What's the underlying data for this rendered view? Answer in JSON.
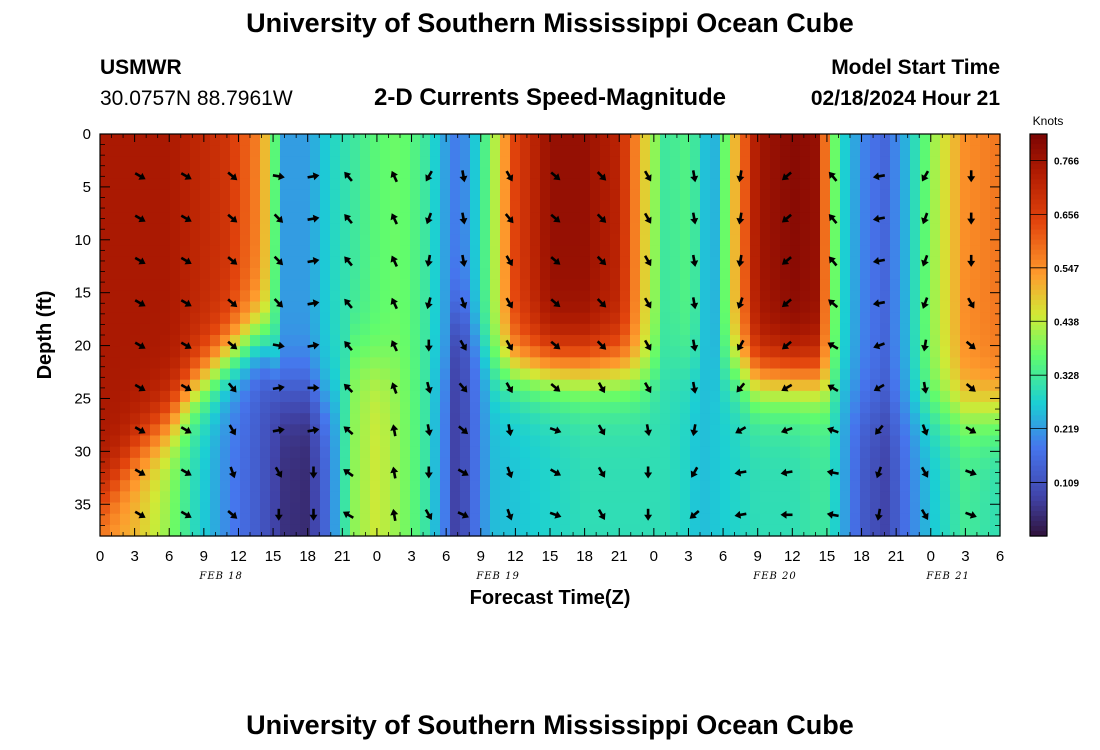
{
  "header": {
    "title": "University of Southern Mississippi Ocean Cube",
    "station_id": "USMWR",
    "coords": "30.0757N  88.7961W",
    "plot_title": "2-D Currents Speed-Magnitude",
    "model_start_label": "Model Start Time",
    "model_start_value": "02/18/2024 Hour 21"
  },
  "footer": {
    "title": "University of Southern Mississippi Ocean Cube"
  },
  "chart_data": {
    "type": "heatmap",
    "title": "2-D Currents Speed-Magnitude",
    "xlabel": "Forecast Time(Z)",
    "ylabel": "Depth (ft)",
    "x_start": "02/18/2024 00Z",
    "x_range_hours": [
      0,
      78
    ],
    "x_step_hours": 3,
    "x_tick_labels": [
      "0",
      "3",
      "6",
      "9",
      "12",
      "15",
      "18",
      "21",
      "0",
      "3",
      "6",
      "9",
      "12",
      "15",
      "18",
      "21",
      "0",
      "3",
      "6",
      "9",
      "12",
      "15",
      "18",
      "21",
      "0",
      "3",
      "6"
    ],
    "date_labels": [
      {
        "text": "FEB 18",
        "hour": 10.5
      },
      {
        "text": "FEB 19",
        "hour": 34.5
      },
      {
        "text": "FEB 20",
        "hour": 58.5
      },
      {
        "text": "FEB 21",
        "hour": 73.5
      }
    ],
    "y_range_ft": [
      0,
      38
    ],
    "y_inverted": true,
    "y_tick_labels": [
      "0",
      "5",
      "10",
      "15",
      "20",
      "25",
      "30",
      "35"
    ],
    "colorbar": {
      "unit": "Knots",
      "min": 0.0,
      "max": 0.82,
      "tick_labels": [
        "0.766",
        "0.656",
        "0.547",
        "0.438",
        "0.328",
        "0.219",
        "0.109"
      ]
    },
    "speed_profiles_knots": [
      {
        "hour": 0,
        "surface": 0.75,
        "deep": 0.55,
        "transition_ft": 35
      },
      {
        "hour": 3,
        "surface": 0.75,
        "deep": 0.5,
        "transition_ft": 30
      },
      {
        "hour": 6,
        "surface": 0.75,
        "deep": 0.4,
        "transition_ft": 27
      },
      {
        "hour": 8,
        "surface": 0.72,
        "deep": 0.3,
        "transition_ft": 24
      },
      {
        "hour": 11,
        "surface": 0.68,
        "deep": 0.2,
        "transition_ft": 21
      },
      {
        "hour": 14,
        "surface": 0.55,
        "deep": 0.12,
        "transition_ft": 19
      },
      {
        "hour": 16,
        "surface": 0.22,
        "deep": 0.05,
        "transition_ft": 24
      },
      {
        "hour": 18,
        "surface": 0.22,
        "deep": 0.04,
        "transition_ft": 24
      },
      {
        "hour": 20,
        "surface": 0.28,
        "deep": 0.18,
        "transition_ft": 26
      },
      {
        "hour": 22,
        "surface": 0.32,
        "deep": 0.4,
        "transition_ft": 20
      },
      {
        "hour": 24,
        "surface": 0.36,
        "deep": 0.45,
        "transition_ft": 22
      },
      {
        "hour": 26,
        "surface": 0.38,
        "deep": 0.4,
        "transition_ft": 22
      },
      {
        "hour": 28,
        "surface": 0.33,
        "deep": 0.33,
        "transition_ft": 22
      },
      {
        "hour": 30,
        "surface": 0.22,
        "deep": 0.18,
        "transition_ft": 22
      },
      {
        "hour": 31,
        "surface": 0.18,
        "deep": 0.05,
        "transition_ft": 16
      },
      {
        "hour": 32,
        "surface": 0.22,
        "deep": 0.14,
        "transition_ft": 18
      },
      {
        "hour": 34,
        "surface": 0.4,
        "deep": 0.25,
        "transition_ft": 22
      },
      {
        "hour": 36,
        "surface": 0.65,
        "deep": 0.26,
        "transition_ft": 22
      },
      {
        "hour": 39,
        "surface": 0.78,
        "deep": 0.28,
        "transition_ft": 22
      },
      {
        "hour": 42,
        "surface": 0.78,
        "deep": 0.3,
        "transition_ft": 22
      },
      {
        "hour": 45,
        "surface": 0.72,
        "deep": 0.3,
        "transition_ft": 22
      },
      {
        "hour": 47,
        "surface": 0.5,
        "deep": 0.3,
        "transition_ft": 23
      },
      {
        "hour": 49,
        "surface": 0.32,
        "deep": 0.3,
        "transition_ft": 22
      },
      {
        "hour": 51,
        "surface": 0.35,
        "deep": 0.28,
        "transition_ft": 22
      },
      {
        "hour": 52,
        "surface": 0.3,
        "deep": 0.25,
        "transition_ft": 22
      },
      {
        "hour": 53,
        "surface": 0.2,
        "deep": 0.26,
        "transition_ft": 22
      },
      {
        "hour": 55,
        "surface": 0.5,
        "deep": 0.28,
        "transition_ft": 22
      },
      {
        "hour": 57,
        "surface": 0.76,
        "deep": 0.3,
        "transition_ft": 23
      },
      {
        "hour": 60,
        "surface": 0.8,
        "deep": 0.3,
        "transition_ft": 23
      },
      {
        "hour": 62,
        "surface": 0.78,
        "deep": 0.32,
        "transition_ft": 23
      },
      {
        "hour": 63,
        "surface": 0.55,
        "deep": 0.32,
        "transition_ft": 24
      },
      {
        "hour": 64,
        "surface": 0.3,
        "deep": 0.26,
        "transition_ft": 24
      },
      {
        "hour": 66,
        "surface": 0.2,
        "deep": 0.13,
        "transition_ft": 26
      },
      {
        "hour": 68,
        "surface": 0.15,
        "deep": 0.08,
        "transition_ft": 26
      },
      {
        "hour": 70,
        "surface": 0.25,
        "deep": 0.18,
        "transition_ft": 26
      },
      {
        "hour": 72,
        "surface": 0.4,
        "deep": 0.26,
        "transition_ft": 26
      },
      {
        "hour": 75,
        "surface": 0.55,
        "deep": 0.33,
        "transition_ft": 26
      },
      {
        "hour": 78,
        "surface": 0.58,
        "deep": 0.3,
        "transition_ft": 26
      }
    ],
    "vector_depths_ft": [
      4,
      8,
      12,
      16,
      20,
      24,
      28,
      32,
      36
    ],
    "vector_columns": [
      {
        "hour": 3.5,
        "dirs_deg": [
          -30,
          -30,
          -30,
          -30,
          -30,
          -30,
          -30,
          -30,
          -30
        ]
      },
      {
        "hour": 7.5,
        "dirs_deg": [
          -30,
          -30,
          -30,
          -30,
          -30,
          -30,
          -30,
          -30,
          -30
        ]
      },
      {
        "hour": 11.5,
        "dirs_deg": [
          -40,
          -40,
          -40,
          -40,
          -40,
          -50,
          -60,
          -70,
          -40
        ]
      },
      {
        "hour": 15.5,
        "dirs_deg": [
          -10,
          -45,
          -45,
          -45,
          -10,
          10,
          10,
          -60,
          -90
        ]
      },
      {
        "hour": 18.5,
        "dirs_deg": [
          10,
          10,
          10,
          10,
          10,
          0,
          10,
          -90,
          -90
        ]
      },
      {
        "hour": 21.5,
        "dirs_deg": [
          130,
          130,
          130,
          130,
          130,
          135,
          140,
          145,
          150
        ]
      },
      {
        "hour": 25.5,
        "dirs_deg": [
          115,
          115,
          115,
          115,
          115,
          110,
          100,
          100,
          100
        ]
      },
      {
        "hour": 28.5,
        "dirs_deg": [
          -120,
          -110,
          -100,
          -105,
          -90,
          -75,
          -80,
          -90,
          -60
        ]
      },
      {
        "hour": 31.5,
        "dirs_deg": [
          -80,
          -80,
          -80,
          -70,
          -60,
          -50,
          -40,
          -30,
          -25
        ]
      },
      {
        "hour": 35.5,
        "dirs_deg": [
          -60,
          -50,
          -60,
          -60,
          -60,
          -60,
          -80,
          -70,
          -70
        ]
      },
      {
        "hour": 39.5,
        "dirs_deg": [
          -40,
          -40,
          -40,
          -40,
          -40,
          -40,
          -20,
          -30,
          -20
        ]
      },
      {
        "hour": 43.5,
        "dirs_deg": [
          -45,
          -45,
          -45,
          -45,
          -45,
          -60,
          -60,
          -60,
          -60
        ]
      },
      {
        "hour": 47.5,
        "dirs_deg": [
          -60,
          -60,
          -60,
          -60,
          -60,
          -60,
          -80,
          -90,
          -90
        ]
      },
      {
        "hour": 51.5,
        "dirs_deg": [
          -80,
          -80,
          -80,
          -80,
          -80,
          -80,
          -100,
          -120,
          -140
        ]
      },
      {
        "hour": 55.5,
        "dirs_deg": [
          -100,
          -100,
          -100,
          -110,
          -120,
          -130,
          -150,
          -170,
          -170
        ]
      },
      {
        "hour": 59.5,
        "dirs_deg": [
          -140,
          -140,
          -140,
          -140,
          -140,
          -150,
          -160,
          -170,
          180
        ]
      },
      {
        "hour": 63.5,
        "dirs_deg": [
          130,
          130,
          130,
          140,
          150,
          150,
          160,
          170,
          170
        ]
      },
      {
        "hour": 67.5,
        "dirs_deg": [
          -170,
          -170,
          -170,
          -170,
          -160,
          -150,
          -130,
          -110,
          -100
        ]
      },
      {
        "hour": 71.5,
        "dirs_deg": [
          -120,
          -110,
          -110,
          -110,
          -100,
          -80,
          -70,
          -60,
          -60
        ]
      },
      {
        "hour": 75.5,
        "dirs_deg": [
          -90,
          -90,
          -90,
          -60,
          -40,
          -40,
          -30,
          -20,
          -20
        ]
      }
    ]
  }
}
